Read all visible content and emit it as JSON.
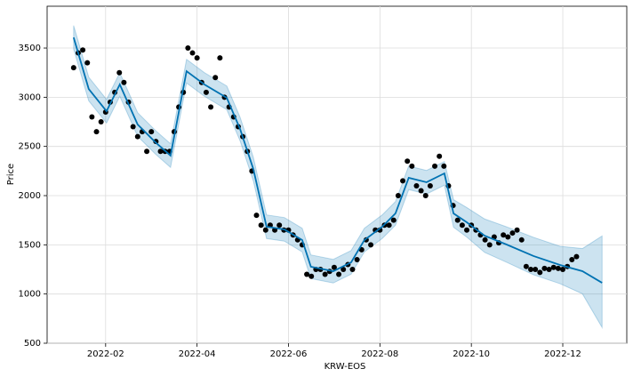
{
  "chart_data": {
    "type": "forecast",
    "xlabel": "KRW-EOS",
    "ylabel": "Price",
    "xlim": [
      0.72,
      13.4
    ],
    "ylim": [
      500,
      3925
    ],
    "xticks": [
      {
        "value": 2,
        "label": "2022-02"
      },
      {
        "value": 4,
        "label": "2022-04"
      },
      {
        "value": 6,
        "label": "2022-06"
      },
      {
        "value": 8,
        "label": "2022-08"
      },
      {
        "value": 10,
        "label": "2022-10"
      },
      {
        "value": 12,
        "label": "2022-12"
      }
    ],
    "yticks": [
      500,
      1000,
      1500,
      2000,
      2500,
      3000,
      3500
    ],
    "grid": true,
    "observed": {
      "color": "#000000",
      "x": [
        1.3,
        1.4,
        1.5,
        1.6,
        1.7,
        1.8,
        1.9,
        2.0,
        2.1,
        2.2,
        2.3,
        2.4,
        2.5,
        2.6,
        2.7,
        2.8,
        2.9,
        3.0,
        3.1,
        3.2,
        3.3,
        3.4,
        3.5,
        3.6,
        3.7,
        3.8,
        3.9,
        4.0,
        4.1,
        4.2,
        4.3,
        4.4,
        4.5,
        4.6,
        4.7,
        4.8,
        4.9,
        5.0,
        5.1,
        5.2,
        5.3,
        5.4,
        5.5,
        5.6,
        5.7,
        5.8,
        5.9,
        6.0,
        6.1,
        6.2,
        6.3,
        6.4,
        6.5,
        6.6,
        6.7,
        6.8,
        6.9,
        7.0,
        7.1,
        7.2,
        7.3,
        7.4,
        7.5,
        7.6,
        7.7,
        7.8,
        7.9,
        8.0,
        8.1,
        8.2,
        8.3,
        8.4,
        8.5,
        8.6,
        8.7,
        8.8,
        8.9,
        9.0,
        9.1,
        9.2,
        9.3,
        9.4,
        9.5,
        9.6,
        9.7,
        9.8,
        9.9,
        10.0,
        10.1,
        10.2,
        10.3,
        10.4,
        10.5,
        10.6,
        10.7,
        10.8,
        10.9,
        11.0,
        11.1,
        11.2,
        11.3,
        11.4,
        11.5,
        11.6,
        11.7,
        11.8,
        11.9,
        12.0,
        12.1,
        12.2,
        12.3
      ],
      "values": [
        3300,
        3450,
        3480,
        3350,
        2800,
        2650,
        2750,
        2850,
        2950,
        3050,
        3250,
        3150,
        2950,
        2700,
        2600,
        2650,
        2450,
        2650,
        2550,
        2450,
        2450,
        2450,
        2650,
        2900,
        3050,
        3500,
        3450,
        3400,
        3150,
        3050,
        2900,
        3200,
        3400,
        3000,
        2900,
        2800,
        2700,
        2600,
        2450,
        2250,
        1800,
        1700,
        1650,
        1700,
        1650,
        1700,
        1650,
        1650,
        1600,
        1550,
        1500,
        1200,
        1180,
        1250,
        1250,
        1200,
        1230,
        1270,
        1200,
        1250,
        1300,
        1250,
        1350,
        1450,
        1550,
        1500,
        1650,
        1650,
        1700,
        1700,
        1750,
        2000,
        2150,
        2350,
        2300,
        2100,
        2050,
        2000,
        2100,
        2300,
        2400,
        2300,
        2100,
        1900,
        1750,
        1700,
        1650,
        1700,
        1650,
        1600,
        1550,
        1500,
        1580,
        1520,
        1600,
        1580,
        1620,
        1650,
        1550,
        1280,
        1250,
        1250,
        1220,
        1260,
        1250,
        1270,
        1260,
        1250,
        1280,
        1350,
        1380
      ]
    },
    "forecast": {
      "color": "#0072B2",
      "x": [
        1.3,
        1.63,
        2.02,
        2.31,
        2.7,
        3.09,
        3.42,
        3.77,
        4.16,
        4.65,
        4.94,
        5.23,
        5.52,
        5.91,
        6.3,
        6.49,
        6.98,
        7.37,
        7.66,
        8.05,
        8.34,
        8.63,
        9.02,
        9.41,
        9.61,
        9.9,
        10.29,
        10.77,
        11.36,
        11.94,
        12.43,
        12.86
      ],
      "values": [
        3608,
        3084,
        2858,
        3130,
        2723,
        2542,
        2407,
        3265,
        3130,
        2994,
        2678,
        2271,
        1684,
        1657,
        1548,
        1277,
        1232,
        1322,
        1548,
        1684,
        1819,
        2181,
        2136,
        2226,
        1819,
        1729,
        1593,
        1503,
        1386,
        1295,
        1232,
        1114
      ],
      "upper": [
        3728,
        3204,
        2978,
        3250,
        2843,
        2662,
        2527,
        3385,
        3250,
        3114,
        2798,
        2391,
        1804,
        1777,
        1668,
        1397,
        1352,
        1442,
        1668,
        1804,
        1939,
        2301,
        2256,
        2346,
        1959,
        1879,
        1763,
        1683,
        1576,
        1485,
        1462,
        1590
      ],
      "lower": [
        3488,
        2964,
        2738,
        3010,
        2603,
        2422,
        2287,
        3145,
        3010,
        2874,
        2558,
        2151,
        1564,
        1537,
        1428,
        1157,
        1112,
        1202,
        1428,
        1564,
        1699,
        2061,
        2016,
        2106,
        1679,
        1579,
        1423,
        1323,
        1196,
        1105,
        1002,
        660
      ]
    }
  }
}
